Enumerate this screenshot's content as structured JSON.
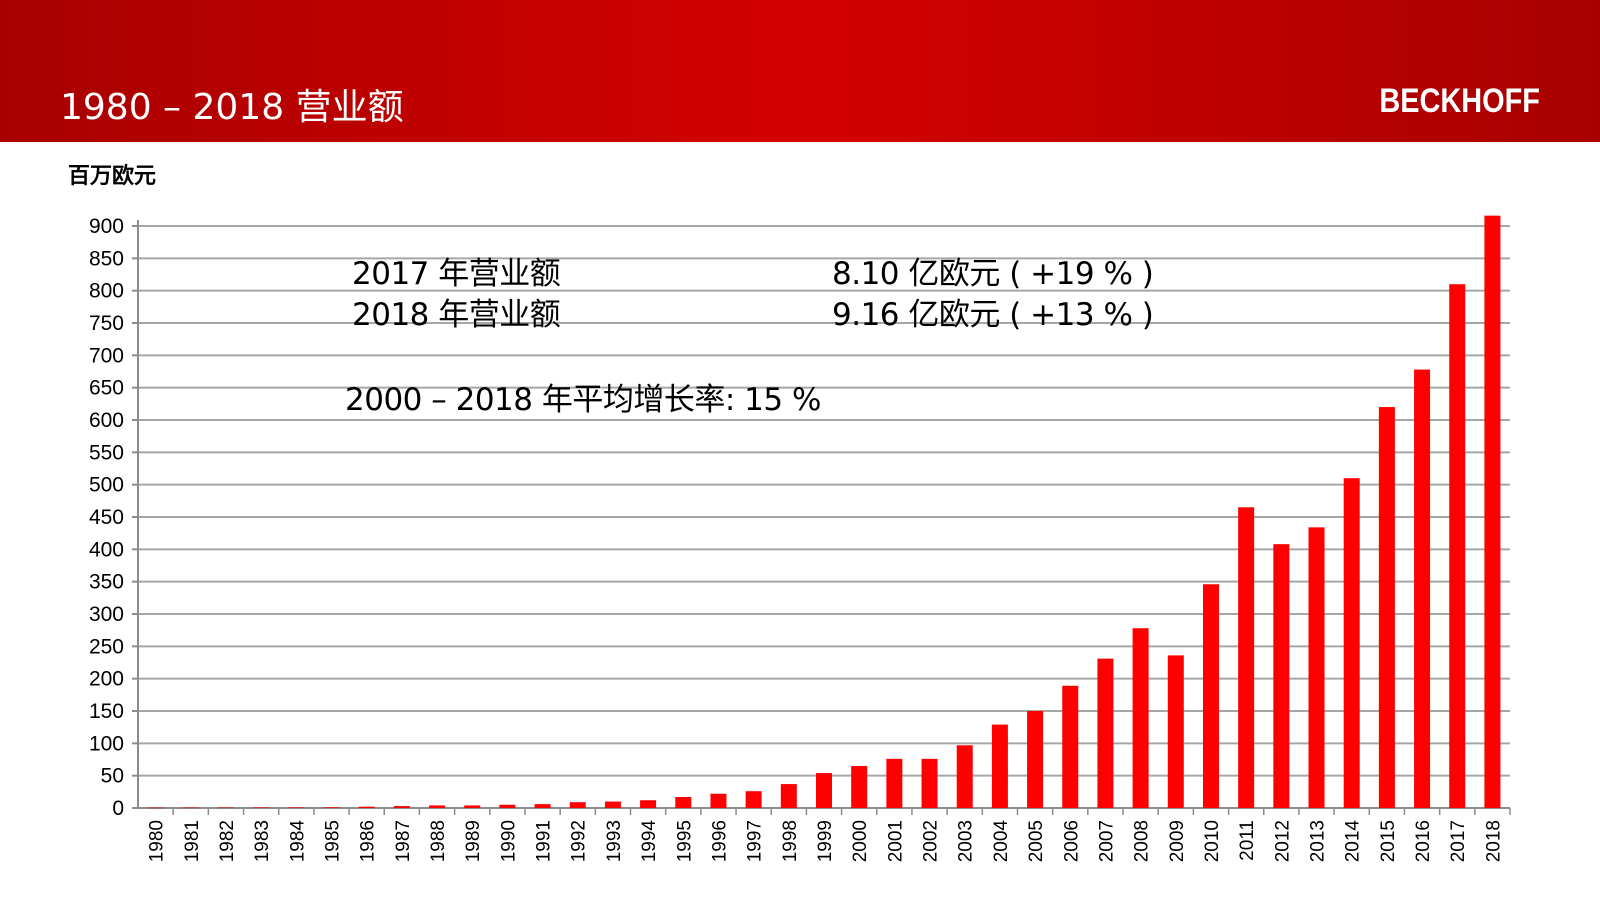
{
  "slide": {
    "title": "1980 – 2018 营业额",
    "logo_text": "BECKHOFF",
    "unit_label": "百万欧元",
    "colors": {
      "header_red": "#c30000",
      "bar_red": "#ff0000",
      "grid": "#a6a6a6"
    }
  },
  "annotations": [
    {
      "label": "2017 年营业额",
      "value": "8.10 亿欧元 ( +19 % )"
    },
    {
      "label": "2018 年营业额",
      "value": "9.16 亿欧元 ( +13 % )"
    },
    {
      "label": "2000 – 2018 年平均增长率: 15 %"
    }
  ],
  "chart_data": {
    "type": "bar",
    "title": "1980 – 2018 营业额",
    "ylabel": "百万欧元",
    "xlabel": "",
    "ylim": [
      0,
      900
    ],
    "yticks": [
      0,
      50,
      100,
      150,
      200,
      250,
      300,
      350,
      400,
      450,
      500,
      550,
      600,
      650,
      700,
      750,
      800,
      850,
      900
    ],
    "grid": true,
    "categories": [
      "1980",
      "1981",
      "1982",
      "1983",
      "1984",
      "1985",
      "1986",
      "1987",
      "1988",
      "1989",
      "1990",
      "1991",
      "1992",
      "1993",
      "1994",
      "1995",
      "1996",
      "1997",
      "1998",
      "1999",
      "2000",
      "2001",
      "2002",
      "2003",
      "2004",
      "2005",
      "2006",
      "2007",
      "2008",
      "2009",
      "2010",
      "2011",
      "2012",
      "2013",
      "2014",
      "2015",
      "2016",
      "2017",
      "2018"
    ],
    "values": [
      0.5,
      0.6,
      0.7,
      0.8,
      0.9,
      1,
      2,
      3,
      4,
      4,
      5,
      6,
      9,
      10,
      12,
      17,
      22,
      26,
      37,
      54,
      65,
      76,
      76,
      97,
      129,
      150,
      189,
      231,
      278,
      236,
      346,
      465,
      408,
      434,
      510,
      620,
      678,
      810,
      916
    ]
  }
}
